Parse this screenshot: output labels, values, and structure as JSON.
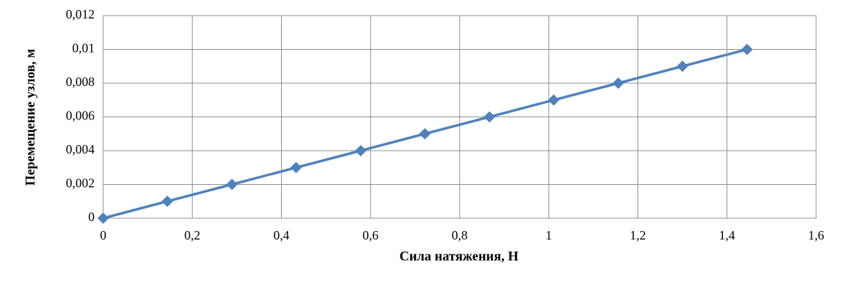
{
  "chart_data": {
    "type": "line",
    "x_label": "Сила натяжения, Н",
    "y_label": "Перемещение узлов, м",
    "x": [
      0,
      0.144,
      0.289,
      0.433,
      0.578,
      0.722,
      0.867,
      1.011,
      1.156,
      1.3,
      1.445
    ],
    "series": [
      {
        "color": "#4f81bd",
        "values": [
          0,
          0.001,
          0.002,
          0.003,
          0.004,
          0.005,
          0.006,
          0.007,
          0.008,
          0.009,
          0.01
        ]
      }
    ],
    "xlim": [
      0,
      1.6
    ],
    "xticks": [
      0,
      {
        "value": 0.2,
        "label": "0,2"
      },
      {
        "value": 0.4,
        "label": "0,4"
      },
      {
        "value": 0.6,
        "label": "0,6"
      },
      {
        "value": 0.8,
        "label": "0,8"
      },
      1,
      {
        "value": 1.2,
        "label": "1,2"
      },
      {
        "value": 1.4,
        "label": "1,4"
      },
      {
        "value": 1.6,
        "label": "1,6"
      }
    ],
    "ylim": [
      0,
      0.012
    ],
    "yticks": [
      0,
      {
        "value": 0.002,
        "label": "0,002"
      },
      {
        "value": 0.004,
        "label": "0,004"
      },
      {
        "value": 0.006,
        "label": "0,006"
      },
      {
        "value": 0.008,
        "label": "0,008"
      },
      {
        "value": 0.01,
        "label": "0,01"
      },
      {
        "value": 0.012,
        "label": "0,012"
      }
    ],
    "grid": true
  }
}
